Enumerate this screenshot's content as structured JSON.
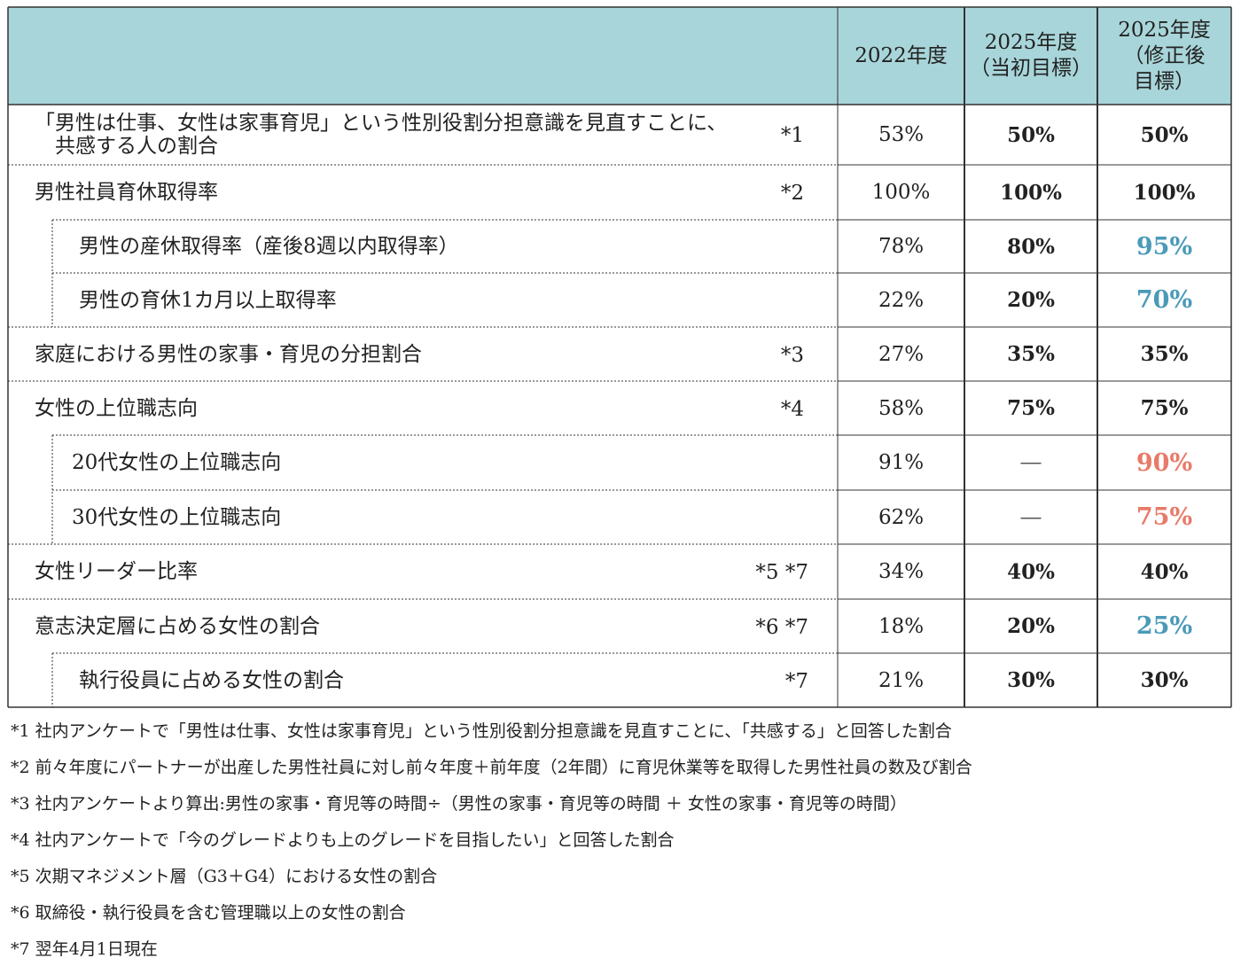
{
  "header": {
    "col_2022": "2022年度",
    "col_initial": "2025年度\n（当初目標）",
    "col_revised": "2025年度\n（修正後\n目標）",
    "background_color": "#a8d5d9"
  },
  "rows": [
    {
      "label": "「男性は仕事、女性は家事育児」という性別役割分担意識を見直すことに、\n　共感する人の割合",
      "mark": "*1",
      "v2022": "53%",
      "initial": "50%",
      "revised": "50%"
    },
    {
      "label": "男性社員育休取得率",
      "mark": "*2",
      "v2022": "100%",
      "initial": "100%",
      "revised": "100%"
    },
    {
      "label": "男性の産休取得率（産後8週以内取得率）",
      "mark": "",
      "v2022": "78%",
      "initial": "80%",
      "revised": "95%"
    },
    {
      "label": "男性の育休1カ月以上取得率",
      "mark": "",
      "v2022": "22%",
      "initial": "20%",
      "revised": "70%"
    },
    {
      "label": "家庭における男性の家事・育児の分担割合",
      "mark": "*3",
      "v2022": "27%",
      "initial": "35%",
      "revised": "35%"
    },
    {
      "label": "女性の上位職志向",
      "mark": "*4",
      "v2022": "58%",
      "initial": "75%",
      "revised": "75%"
    },
    {
      "label": "20代女性の上位職志向",
      "mark": "",
      "v2022": "91%",
      "initial": "―",
      "revised": "90%"
    },
    {
      "label": "30代女性の上位職志向",
      "mark": "",
      "v2022": "62%",
      "initial": "―",
      "revised": "75%"
    },
    {
      "label": "女性リーダー比率",
      "mark": "*5 *7",
      "v2022": "34%",
      "initial": "40%",
      "revised": "40%"
    },
    {
      "label": "意志決定層に占める女性の割合",
      "mark": "*6 *7",
      "v2022": "18%",
      "initial": "20%",
      "revised": "25%"
    },
    {
      "label": "執行役員に占める女性の割合",
      "mark": "*7",
      "v2022": "21%",
      "initial": "30%",
      "revised": "30%"
    }
  ],
  "colors": {
    "blue": "#4a9ab8",
    "red": "#e87a68",
    "text": "#222222"
  },
  "notes": [
    "*1 社内アンケートで「男性は仕事、女性は家事育児」という性別役割分担意識を見直すことに、「共感する」と回答した割合",
    "*2 前々年度にパートナーが出産した男性社員に対し前々年度＋前年度（2年間）に育児休業等を取得した男性社員の数及び割合",
    "*3 社内アンケートより算出:男性の家事・育児等の時間÷（男性の家事・育児等の時間 ＋ 女性の家事・育児等の時間）",
    "*4 社内アンケートで「今のグレードよりも上のグレードを目指したい」と回答した割合",
    "*5 次期マネジメント層（G3＋G4）における女性の割合",
    "*6 取締役・執行役員を含む管理職以上の女性の割合",
    "*7 翌年4月1日現在"
  ]
}
